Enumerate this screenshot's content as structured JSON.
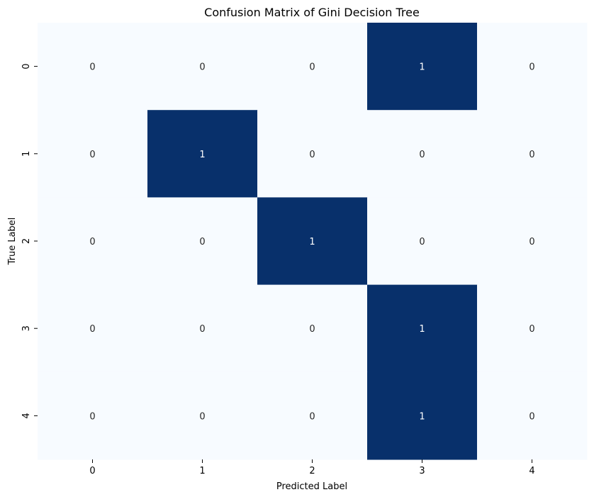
{
  "chart_data": {
    "type": "heatmap",
    "title": "Confusion Matrix of Gini Decision Tree",
    "xlabel": "Predicted Label",
    "ylabel": "True Label",
    "x_categories": [
      "0",
      "1",
      "2",
      "3",
      "4"
    ],
    "y_categories": [
      "0",
      "1",
      "2",
      "3",
      "4"
    ],
    "values": [
      [
        0,
        0,
        0,
        1,
        0
      ],
      [
        0,
        1,
        0,
        0,
        0
      ],
      [
        0,
        0,
        1,
        0,
        0
      ],
      [
        0,
        0,
        0,
        1,
        0
      ],
      [
        0,
        0,
        0,
        1,
        0
      ]
    ],
    "value_range": [
      0,
      1
    ],
    "colormap": "Blues",
    "colors": {
      "low": "#f7fbff",
      "high": "#08306b",
      "text_on_low": "#262626",
      "text_on_high": "#ffffff"
    },
    "show_colorbar": false,
    "grid": false
  }
}
